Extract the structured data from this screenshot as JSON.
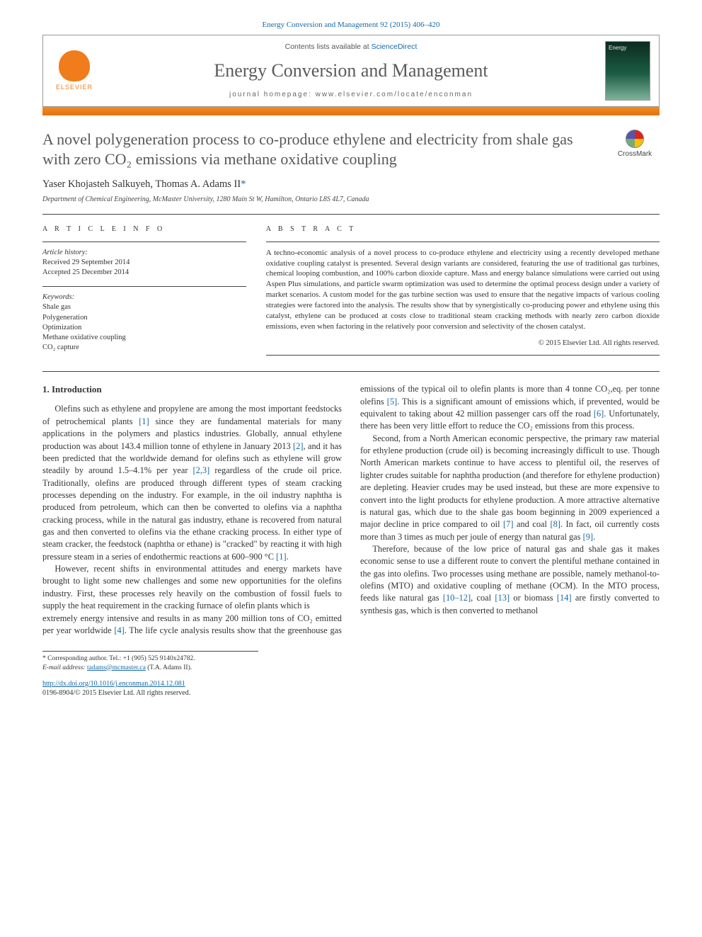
{
  "citation": "Energy Conversion and Management 92 (2015) 406–420",
  "header": {
    "publisher": "ELSEVIER",
    "contents_prefix": "Contents lists available at ",
    "contents_link": "ScienceDirect",
    "journal": "Energy Conversion and Management",
    "homepage_label": "journal homepage: www.elsevier.com/locate/enconman"
  },
  "crossmark_label": "CrossMark",
  "title_html": "A novel polygeneration process to co-produce ethylene and electricity from shale gas with zero CO₂ emissions via methane oxidative coupling",
  "authors": "Yaser Khojasteh Salkuyeh, Thomas A. Adams II",
  "corr_marker": "*",
  "affiliation": "Department of Chemical Engineering, McMaster University, 1280 Main St W, Hamilton, Ontario L8S 4L7, Canada",
  "info": {
    "section_label": "A R T I C L E   I N F O",
    "history_label": "Article history:",
    "received": "Received 29 September 2014",
    "accepted": "Accepted 25 December 2014",
    "keywords_label": "Keywords:",
    "keywords": [
      "Shale gas",
      "Polygeneration",
      "Optimization",
      "Methane oxidative coupling",
      "CO₂ capture"
    ]
  },
  "abstract": {
    "section_label": "A B S T R A C T",
    "text": "A techno-economic analysis of a novel process to co-produce ethylene and electricity using a recently developed methane oxidative coupling catalyst is presented. Several design variants are considered, featuring the use of traditional gas turbines, chemical looping combustion, and 100% carbon dioxide capture. Mass and energy balance simulations were carried out using Aspen Plus simulations, and particle swarm optimization was used to determine the optimal process design under a variety of market scenarios. A custom model for the gas turbine section was used to ensure that the negative impacts of various cooling strategies were factored into the analysis. The results show that by synergistically co-producing power and ethylene using this catalyst, ethylene can be produced at costs close to traditional steam cracking methods with nearly zero carbon dioxide emissions, even when factoring in the relatively poor conversion and selectivity of the chosen catalyst.",
    "copyright": "© 2015 Elsevier Ltd. All rights reserved."
  },
  "intro_heading": "1. Introduction",
  "intro_p1": "Olefins such as ethylene and propylene are among the most important feedstocks of petrochemical plants [1] since they are fundamental materials for many applications in the polymers and plastics industries. Globally, annual ethylene production was about 143.4 million tonne of ethylene in January 2013 [2], and it has been predicted that the worldwide demand for olefins such as ethylene will grow steadily by around 1.5–4.1% per year [2,3] regardless of the crude oil price. Traditionally, olefins are produced through different types of steam cracking processes depending on the industry. For example, in the oil industry naphtha is produced from petroleum, which can then be converted to olefins via a naphtha cracking process, while in the natural gas industry, ethane is recovered from natural gas and then converted to olefins via the ethane cracking process. In either type of steam cracker, the feedstock (naphtha or ethane) is \"cracked\" by reacting it with high pressure steam in a series of endothermic reactions at 600–900 °C [1].",
  "intro_p2": "However, recent shifts in environmental attitudes and energy markets have brought to light some new challenges and some new opportunities for the olefins industry. First, these processes rely heavily on the combustion of fossil fuels to supply the heat requirement in the cracking furnace of olefin plants which is",
  "intro_p3": "extremely energy intensive and results in as many 200 million tons of CO₂ emitted per year worldwide [4]. The life cycle analysis results show that the greenhouse gas emissions of the typical oil to olefin plants is more than 4 tonne CO₂,eq. per tonne olefins [5]. This is a significant amount of emissions which, if prevented, would be equivalent to taking about 42 million passenger cars off the road [6]. Unfortunately, there has been very little effort to reduce the CO₂ emissions from this process.",
  "intro_p4": "Second, from a North American economic perspective, the primary raw material for ethylene production (crude oil) is becoming increasingly difficult to use. Though North American markets continue to have access to plentiful oil, the reserves of lighter crudes suitable for naphtha production (and therefore for ethylene production) are depleting. Heavier crudes may be used instead, but these are more expensive to convert into the light products for ethylene production. A more attractive alternative is natural gas, which due to the shale gas boom beginning in 2009 experienced a major decline in price compared to oil [7] and coal [8]. In fact, oil currently costs more than 3 times as much per joule of energy than natural gas [9].",
  "intro_p5": "Therefore, because of the low price of natural gas and shale gas it makes economic sense to use a different route to convert the plentiful methane contained in the gas into olefins. Two processes using methane are possible, namely methanol-to-olefins (MTO) and oxidative coupling of methane (OCM). In the MTO process, feeds like natural gas [10–12], coal [13] or biomass [14] are firstly converted to synthesis gas, which is then converted to methanol",
  "footnote": {
    "corr_label": "* Corresponding author. Tel.: +1 (905) 525 9140x24782.",
    "email_label": "E-mail address:",
    "email": "tadams@mcmaster.ca",
    "email_suffix": "(T.A. Adams II)."
  },
  "doi": {
    "url": "http://dx.doi.org/10.1016/j.enconman.2014.12.081",
    "issn_line": "0196-8904/© 2015 Elsevier Ltd. All rights reserved."
  },
  "colors": {
    "link": "#1768a6",
    "accent_bar": "#e97d16",
    "text": "#333333",
    "title_grey": "#585858"
  }
}
